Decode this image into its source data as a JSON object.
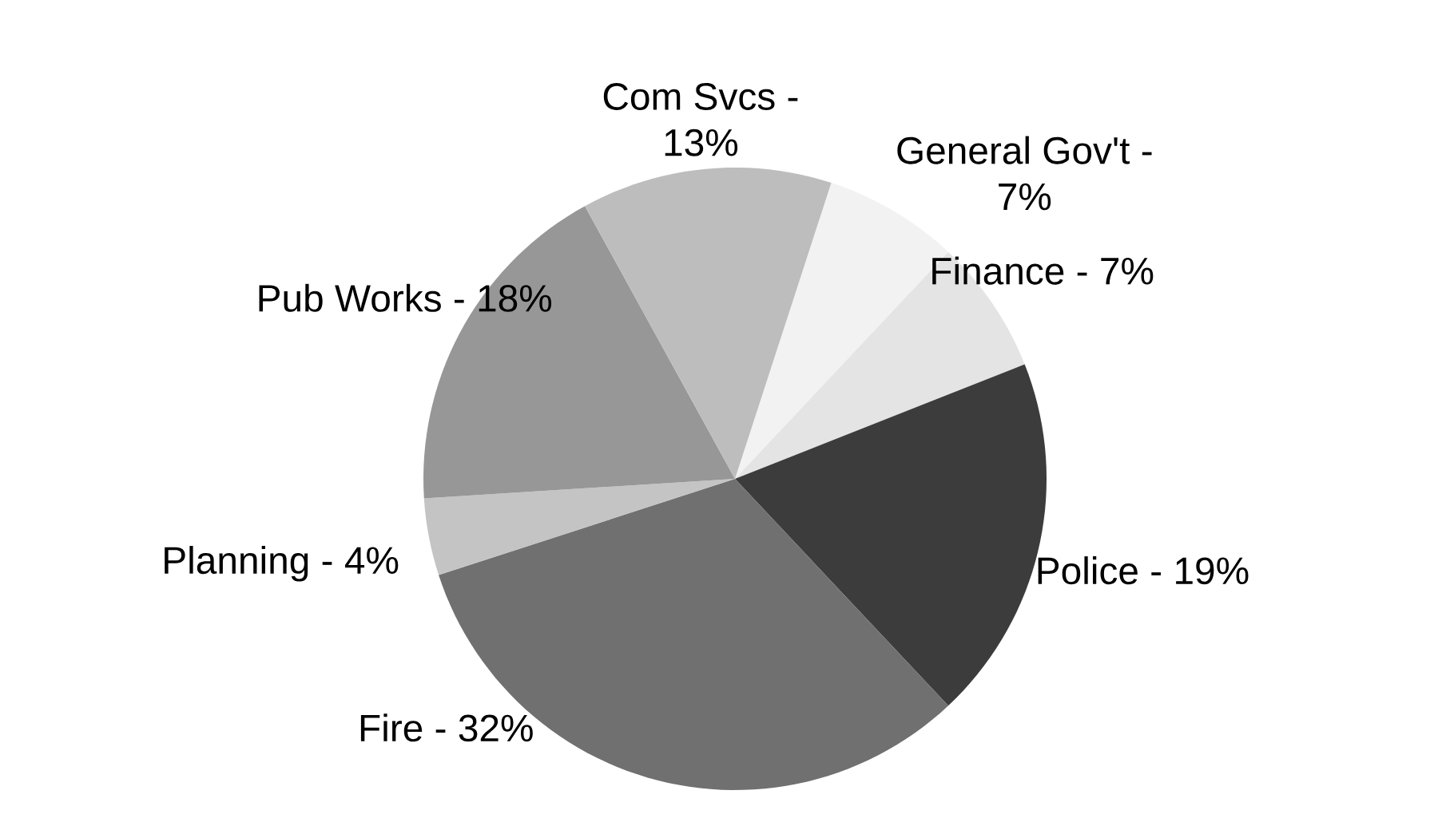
{
  "chart_data": {
    "type": "pie",
    "categories": [
      "General Gov't -",
      "Finance -",
      "Police -",
      "Fire -",
      "Planning -",
      "Pub Works -",
      "Com Svcs -"
    ],
    "values": [
      7,
      7,
      19,
      32,
      4,
      18,
      13
    ],
    "value_labels": [
      "7%",
      "7%",
      "19%",
      "32%",
      "4%",
      "18%",
      "13%"
    ],
    "colors": [
      "#f2f2f2",
      "#e4e4e4",
      "#3c3c3c",
      "#707070",
      "#c4c4c4",
      "#979797",
      "#bdbdbd"
    ]
  }
}
